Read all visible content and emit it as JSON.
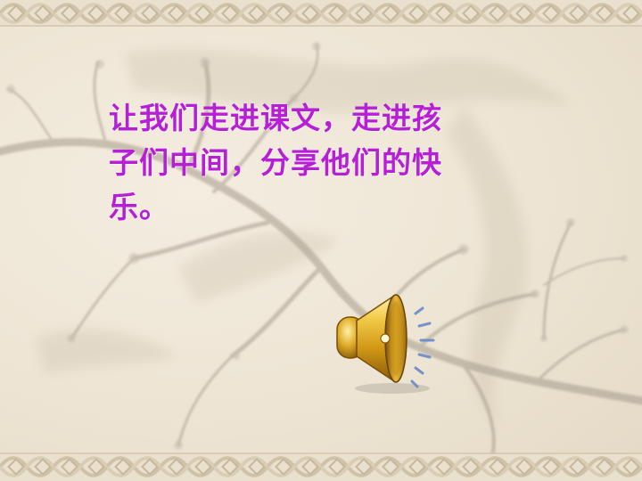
{
  "slide": {
    "text_lines": [
      "让我们走进课文，走进孩",
      "子们中间，分享他们的快",
      "乐。"
    ]
  },
  "icons": {
    "audio": "speaker-icon"
  },
  "colors": {
    "text": "#b61fd6",
    "background": "#ece3d2",
    "border": "#d8ccb4",
    "speaker_gold": "#d9a520",
    "sound_waves": "#5f86c8"
  }
}
